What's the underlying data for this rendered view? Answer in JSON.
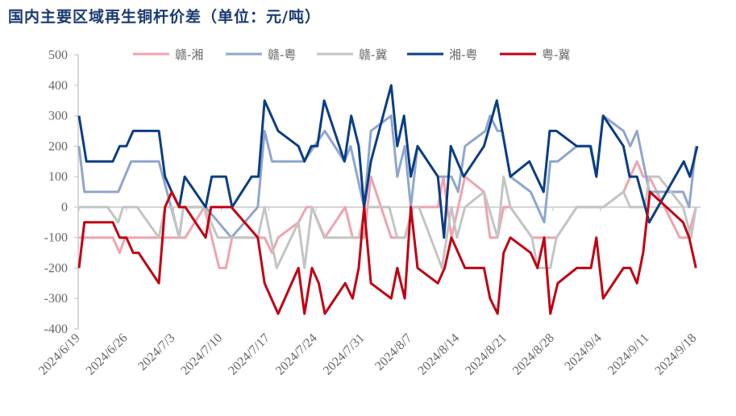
{
  "chart_data": {
    "type": "line",
    "title": "国内主要区域再生铜杆价差（单位：元/吨）",
    "xlabel": "",
    "ylabel": "",
    "x_unit": "days since 2024/6/19",
    "xlim": [
      0,
      91.3
    ],
    "ylim": [
      -400,
      500
    ],
    "yticks": [
      500,
      400,
      300,
      200,
      100,
      0,
      -100,
      -200,
      -300,
      -400
    ],
    "xticks": [
      {
        "day": 0,
        "label": "2024/6/19"
      },
      {
        "day": 7,
        "label": "2024/6/26"
      },
      {
        "day": 14,
        "label": "2024/7/3"
      },
      {
        "day": 21,
        "label": "2024/7/10"
      },
      {
        "day": 28,
        "label": "2024/7/17"
      },
      {
        "day": 35,
        "label": "2024/7/24"
      },
      {
        "day": 42,
        "label": "2024/7/31"
      },
      {
        "day": 49,
        "label": "2024/8/7"
      },
      {
        "day": 56,
        "label": "2024/8/14"
      },
      {
        "day": 63,
        "label": "2024/8/21"
      },
      {
        "day": 70,
        "label": "2024/8/28"
      },
      {
        "day": 77,
        "label": "2024/9/4"
      },
      {
        "day": 84,
        "label": "2024/9/11"
      },
      {
        "day": 91,
        "label": "2024/9/18"
      }
    ],
    "legend_position": "top",
    "grid": false,
    "series": [
      {
        "name": "赣-湘",
        "color": "#f0a3ad",
        "points": [
          [
            0,
            -100
          ],
          [
            5,
            -100
          ],
          [
            6,
            -150
          ],
          [
            6.8,
            -100
          ],
          [
            12.1,
            -100
          ],
          [
            15.7,
            -100
          ],
          [
            18.5,
            0
          ],
          [
            19.6,
            -100
          ],
          [
            20.7,
            -200
          ],
          [
            21.7,
            -200
          ],
          [
            22.6,
            -100
          ],
          [
            27.4,
            -100
          ],
          [
            28.5,
            -150
          ],
          [
            29.4,
            -100
          ],
          [
            32.4,
            -50
          ],
          [
            33.6,
            0
          ],
          [
            34.4,
            0
          ],
          [
            36.3,
            -100
          ],
          [
            39.3,
            0
          ],
          [
            40.4,
            -100
          ],
          [
            42.1,
            -100
          ],
          [
            43.1,
            100
          ],
          [
            46.1,
            -100
          ],
          [
            48.1,
            -100
          ],
          [
            49.3,
            0
          ],
          [
            53,
            0
          ],
          [
            53.8,
            100
          ],
          [
            55,
            -100
          ],
          [
            57,
            100
          ],
          [
            59.8,
            50
          ],
          [
            60.7,
            -100
          ],
          [
            61.8,
            -100
          ],
          [
            62.7,
            0
          ],
          [
            63.7,
            0
          ],
          [
            66.9,
            -100
          ],
          [
            70.5,
            -100
          ],
          [
            73.5,
            0
          ],
          [
            77.4,
            0
          ],
          [
            80.4,
            50
          ],
          [
            82.4,
            150
          ],
          [
            83.3,
            100
          ],
          [
            84.2,
            100
          ],
          [
            88.7,
            -100
          ],
          [
            89.9,
            -100
          ],
          [
            91.1,
            0
          ]
        ]
      },
      {
        "name": "赣-粤",
        "color": "#8ea6cd",
        "points": [
          [
            0,
            200
          ],
          [
            0.8,
            50
          ],
          [
            5.8,
            50
          ],
          [
            7.7,
            150
          ],
          [
            11.8,
            150
          ],
          [
            14.8,
            -100
          ],
          [
            15.4,
            0
          ],
          [
            18.7,
            0
          ],
          [
            22.5,
            -100
          ],
          [
            26.4,
            0
          ],
          [
            27.4,
            250
          ],
          [
            28.5,
            150
          ],
          [
            33.2,
            150
          ],
          [
            36.3,
            250
          ],
          [
            39.2,
            150
          ],
          [
            40.1,
            200
          ],
          [
            42.1,
            0
          ],
          [
            43.1,
            250
          ],
          [
            46.1,
            300
          ],
          [
            47,
            100
          ],
          [
            48.1,
            200
          ],
          [
            49,
            0
          ],
          [
            50,
            200
          ],
          [
            53,
            100
          ],
          [
            55,
            100
          ],
          [
            56,
            50
          ],
          [
            57,
            200
          ],
          [
            60,
            250
          ],
          [
            60.7,
            300
          ],
          [
            61.8,
            250
          ],
          [
            62.5,
            250
          ],
          [
            63.7,
            100
          ],
          [
            66.7,
            50
          ],
          [
            68.7,
            -50
          ],
          [
            69.6,
            150
          ],
          [
            70.7,
            150
          ],
          [
            73.5,
            200
          ],
          [
            75.6,
            200
          ],
          [
            76.4,
            100
          ],
          [
            77.4,
            300
          ],
          [
            80.4,
            250
          ],
          [
            81.4,
            200
          ],
          [
            82.4,
            250
          ],
          [
            84.2,
            50
          ],
          [
            89.2,
            50
          ],
          [
            90.1,
            0
          ],
          [
            91.1,
            200
          ]
        ]
      },
      {
        "name": "赣-冀",
        "color": "#c4c4c4",
        "points": [
          [
            0,
            0
          ],
          [
            4.2,
            0
          ],
          [
            5.8,
            -50
          ],
          [
            6.5,
            0
          ],
          [
            8.6,
            0
          ],
          [
            11.8,
            -100
          ],
          [
            12.7,
            0
          ],
          [
            13.7,
            0
          ],
          [
            14.8,
            -100
          ],
          [
            15.4,
            0
          ],
          [
            18.5,
            0
          ],
          [
            20.5,
            -100
          ],
          [
            26.4,
            -100
          ],
          [
            27.4,
            0
          ],
          [
            29.2,
            -200
          ],
          [
            32.4,
            -50
          ],
          [
            33.3,
            -200
          ],
          [
            34.4,
            0
          ],
          [
            36.2,
            -100
          ],
          [
            40.4,
            -100
          ],
          [
            41.3,
            -100
          ],
          [
            42.3,
            0
          ],
          [
            45.8,
            0
          ],
          [
            47,
            -100
          ],
          [
            48.2,
            -100
          ],
          [
            49.3,
            0
          ],
          [
            50.2,
            0
          ],
          [
            53.6,
            -200
          ],
          [
            55,
            0
          ],
          [
            55.8,
            -100
          ],
          [
            57,
            0
          ],
          [
            59.8,
            50
          ],
          [
            61.8,
            -100
          ],
          [
            62.7,
            100
          ],
          [
            63.7,
            0
          ],
          [
            66.9,
            -100
          ],
          [
            67.7,
            -200
          ],
          [
            69.6,
            -200
          ],
          [
            70.5,
            -100
          ],
          [
            73.5,
            0
          ],
          [
            77.4,
            0
          ],
          [
            80.4,
            50
          ],
          [
            81.4,
            0
          ],
          [
            83.6,
            0
          ],
          [
            84.2,
            100
          ],
          [
            85.6,
            100
          ],
          [
            89.2,
            0
          ],
          [
            90.4,
            -100
          ],
          [
            91.1,
            0
          ]
        ]
      },
      {
        "name": "湘-粤",
        "color": "#0b3d86",
        "points": [
          [
            0,
            300
          ],
          [
            1.1,
            150
          ],
          [
            5,
            150
          ],
          [
            6,
            200
          ],
          [
            7,
            200
          ],
          [
            8,
            250
          ],
          [
            11.8,
            250
          ],
          [
            12.7,
            100
          ],
          [
            13.7,
            50
          ],
          [
            14.8,
            0
          ],
          [
            15.6,
            100
          ],
          [
            18.7,
            0
          ],
          [
            19.6,
            100
          ],
          [
            21.7,
            100
          ],
          [
            22.6,
            0
          ],
          [
            25.5,
            100
          ],
          [
            26.5,
            100
          ],
          [
            27.4,
            350
          ],
          [
            29.4,
            250
          ],
          [
            32.4,
            200
          ],
          [
            33.3,
            150
          ],
          [
            34.3,
            200
          ],
          [
            35.2,
            200
          ],
          [
            36.2,
            350
          ],
          [
            39.2,
            150
          ],
          [
            40.2,
            300
          ],
          [
            41.3,
            200
          ],
          [
            42.1,
            0
          ],
          [
            43.1,
            150
          ],
          [
            46.1,
            400
          ],
          [
            47,
            200
          ],
          [
            48,
            300
          ],
          [
            49,
            100
          ],
          [
            50,
            200
          ],
          [
            53,
            100
          ],
          [
            53.9,
            -100
          ],
          [
            54.9,
            200
          ],
          [
            56.8,
            100
          ],
          [
            59.8,
            200
          ],
          [
            61.7,
            350
          ],
          [
            63.7,
            100
          ],
          [
            66.5,
            150
          ],
          [
            68.6,
            50
          ],
          [
            69.5,
            250
          ],
          [
            70.5,
            250
          ],
          [
            73.5,
            200
          ],
          [
            75.5,
            200
          ],
          [
            76.4,
            100
          ],
          [
            77.4,
            300
          ],
          [
            80.4,
            200
          ],
          [
            81.3,
            100
          ],
          [
            82.4,
            100
          ],
          [
            84.2,
            -50
          ],
          [
            89.3,
            150
          ],
          [
            90.2,
            100
          ],
          [
            91.3,
            200
          ]
        ]
      },
      {
        "name": "粤-冀",
        "color": "#c00012",
        "points": [
          [
            0,
            -200
          ],
          [
            0.8,
            -50
          ],
          [
            5,
            -50
          ],
          [
            6,
            -100
          ],
          [
            7,
            -100
          ],
          [
            8,
            -150
          ],
          [
            8.8,
            -150
          ],
          [
            11.8,
            -250
          ],
          [
            12.7,
            0
          ],
          [
            13.7,
            50
          ],
          [
            14.8,
            0
          ],
          [
            15.7,
            0
          ],
          [
            18.7,
            -100
          ],
          [
            19.5,
            0
          ],
          [
            22.5,
            0
          ],
          [
            26.4,
            -100
          ],
          [
            27.4,
            -250
          ],
          [
            29.4,
            -350
          ],
          [
            32.4,
            -200
          ],
          [
            33.3,
            -350
          ],
          [
            34.4,
            -200
          ],
          [
            35.4,
            -250
          ],
          [
            36.3,
            -350
          ],
          [
            39.3,
            -250
          ],
          [
            40.4,
            -300
          ],
          [
            41.3,
            -200
          ],
          [
            42.1,
            0
          ],
          [
            43.1,
            -250
          ],
          [
            46.1,
            -300
          ],
          [
            47,
            -200
          ],
          [
            48.1,
            -300
          ],
          [
            49,
            0
          ],
          [
            50,
            -200
          ],
          [
            53,
            -250
          ],
          [
            54,
            -200
          ],
          [
            55,
            -100
          ],
          [
            57,
            -200
          ],
          [
            59.8,
            -200
          ],
          [
            60.7,
            -300
          ],
          [
            61.8,
            -350
          ],
          [
            62.7,
            -150
          ],
          [
            63.7,
            -100
          ],
          [
            66.7,
            -150
          ],
          [
            67.7,
            -200
          ],
          [
            68.7,
            -100
          ],
          [
            69.6,
            -350
          ],
          [
            70.7,
            -250
          ],
          [
            73.5,
            -200
          ],
          [
            75.6,
            -200
          ],
          [
            76.4,
            -100
          ],
          [
            77.4,
            -300
          ],
          [
            80.4,
            -200
          ],
          [
            81.4,
            -200
          ],
          [
            82.4,
            -250
          ],
          [
            83.3,
            -150
          ],
          [
            84.3,
            50
          ],
          [
            89.2,
            -50
          ],
          [
            90.1,
            -100
          ],
          [
            91.1,
            -200
          ]
        ]
      }
    ]
  }
}
